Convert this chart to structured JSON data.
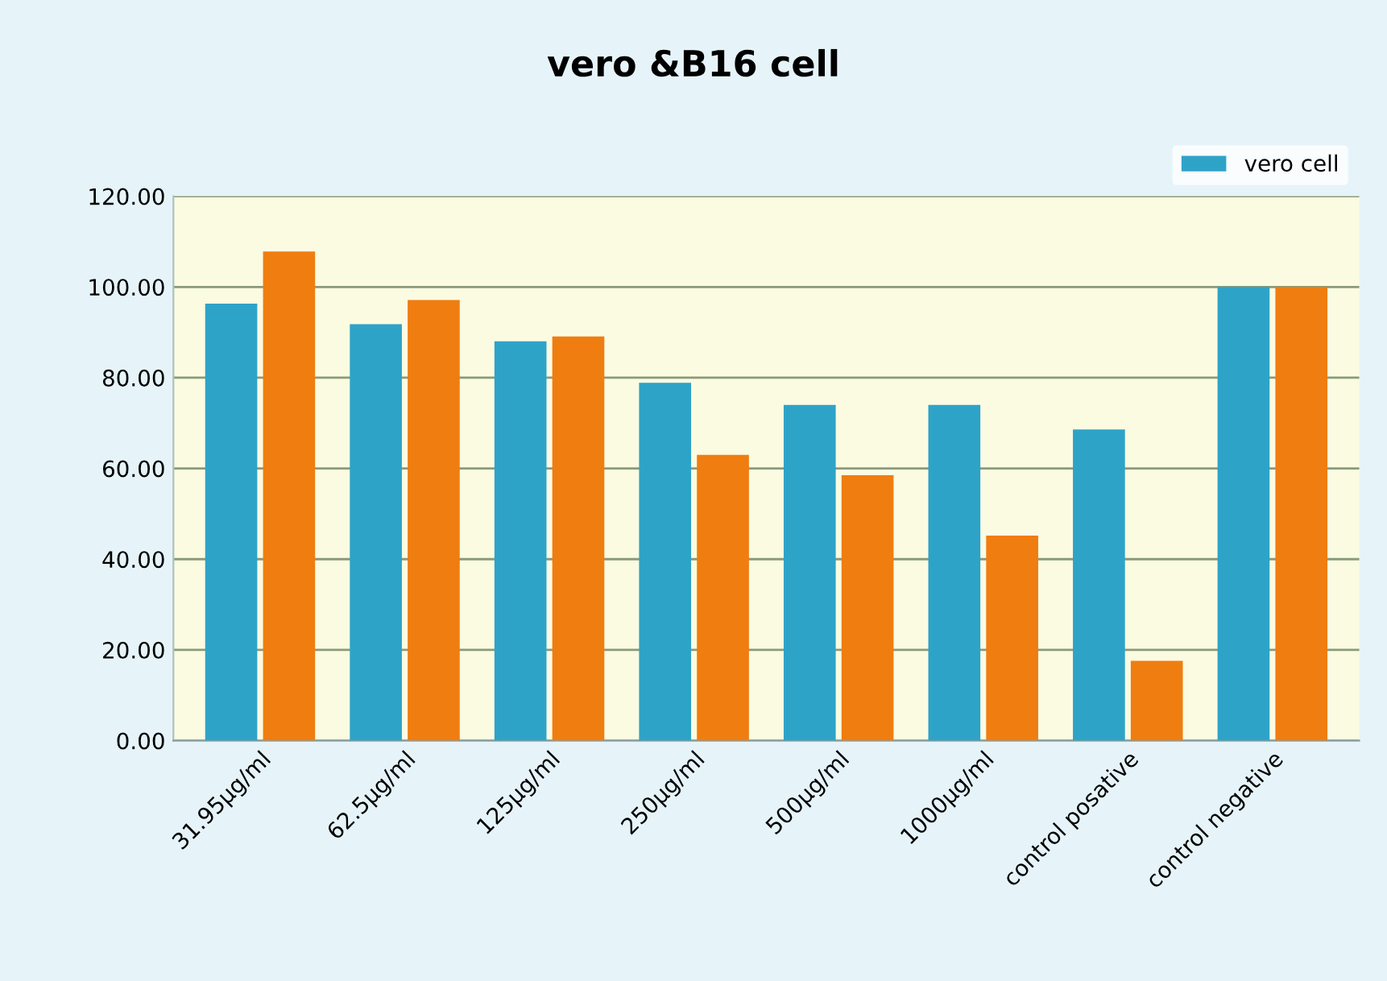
{
  "chart_data": {
    "type": "bar",
    "title": "vero &B16 cell",
    "categories": [
      "31.95μg/ml",
      "62.5μg/ml",
      "125μg/ml",
      "250μg/ml",
      "500μg/ml",
      "1000μg/ml",
      "control posative",
      "control negative"
    ],
    "series": [
      {
        "name": "vero cell",
        "color": "#2ea3c8",
        "values": [
          96.3,
          91.8,
          88,
          78.9,
          74,
          74,
          68.6,
          100
        ]
      },
      {
        "color": "#f07d10",
        "values": [
          107.8,
          97.1,
          89.1,
          63,
          58.5,
          45.2,
          17.6,
          100
        ]
      }
    ],
    "ylim": [
      0,
      120
    ],
    "yticks": [
      {
        "value": 0,
        "label": "0.00"
      },
      {
        "value": 20,
        "label": "20.00"
      },
      {
        "value": 40,
        "label": "40.00"
      },
      {
        "value": 60,
        "label": "60.00"
      },
      {
        "value": 80,
        "label": "80.00"
      },
      {
        "value": 100,
        "label": "100.00"
      },
      {
        "value": 120,
        "label": "120.00"
      }
    ],
    "grid": "y",
    "legend": "top right"
  }
}
